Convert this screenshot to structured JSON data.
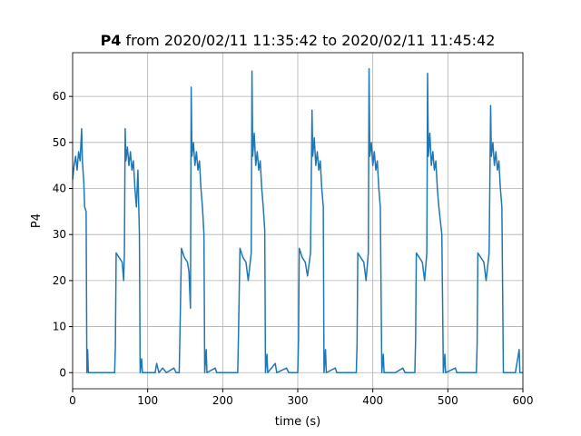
{
  "chart_data": {
    "type": "line",
    "title": {
      "bold": "P4",
      "text": "from 2020/02/11 11:35:42 to 2020/02/11 11:45:42"
    },
    "xlabel": "time (s)",
    "ylabel": "P4",
    "xlim": [
      0,
      600
    ],
    "ylim": [
      -3.5,
      69.5
    ],
    "xticks": [
      0,
      100,
      200,
      300,
      400,
      500,
      600
    ],
    "yticks": [
      0,
      10,
      20,
      30,
      40,
      50,
      60
    ],
    "grid": true,
    "series": [
      {
        "color": "#1f77b4",
        "x": [
          0,
          2,
          4,
          6,
          8,
          10,
          12,
          13,
          15,
          16,
          18,
          19,
          20,
          21,
          56,
          57,
          58,
          62,
          66,
          68,
          69,
          70,
          71,
          73,
          75,
          77,
          79,
          81,
          83,
          85,
          87,
          89,
          90,
          92,
          93,
          110,
          112,
          115,
          120,
          125,
          135,
          138,
          142,
          143,
          145,
          149,
          153,
          155,
          157,
          158,
          159,
          161,
          163,
          165,
          167,
          169,
          171,
          173,
          175,
          176,
          178,
          179,
          190,
          192,
          205,
          220,
          221,
          223,
          227,
          231,
          234,
          238,
          239,
          240,
          242,
          244,
          246,
          248,
          250,
          252,
          254,
          256,
          257,
          259,
          260,
          270,
          272,
          285,
          288,
          300,
          301,
          302,
          306,
          310,
          313,
          317,
          319,
          320,
          322,
          324,
          326,
          328,
          330,
          332,
          334,
          335,
          337,
          338,
          350,
          352,
          365,
          378,
          379,
          380,
          384,
          388,
          391,
          394,
          395,
          396,
          398,
          400,
          402,
          404,
          406,
          408,
          410,
          412,
          414,
          415,
          430,
          440,
          443,
          456,
          457,
          458,
          462,
          466,
          469,
          472,
          473,
          474,
          476,
          478,
          480,
          482,
          484,
          486,
          488,
          492,
          494,
          496,
          497,
          510,
          512,
          530,
          538,
          539,
          540,
          544,
          548,
          551,
          555,
          557,
          558,
          560,
          562,
          564,
          566,
          568,
          570,
          572,
          574,
          590,
          595,
          596,
          600
        ],
        "values": [
          42,
          45,
          47,
          44,
          48,
          46,
          53,
          46,
          41,
          36,
          35,
          0,
          5,
          0,
          0,
          6,
          26,
          25,
          24,
          20,
          26,
          53,
          46,
          49,
          45,
          48,
          44,
          46,
          40,
          36,
          44,
          30,
          0,
          3,
          0,
          0,
          2,
          0,
          1,
          0,
          1,
          0,
          0,
          8,
          27,
          25,
          24,
          22,
          14,
          62,
          47,
          50,
          45,
          48,
          44,
          46,
          40,
          36,
          30,
          0,
          5,
          0,
          1,
          0,
          0,
          0,
          8,
          27,
          25,
          24,
          20,
          26,
          65.5,
          47,
          52,
          45,
          48,
          44,
          46,
          40,
          36,
          31,
          0,
          4,
          0,
          2,
          0,
          1,
          0,
          0,
          7,
          27,
          25,
          24,
          21,
          26,
          57,
          47,
          51,
          45,
          48,
          44,
          46,
          40,
          36,
          0,
          5,
          0,
          1,
          0,
          0,
          0,
          6,
          26,
          25,
          24,
          20,
          26,
          66,
          47,
          50,
          45,
          48,
          44,
          46,
          40,
          36,
          0,
          4,
          0,
          0,
          1,
          0,
          0,
          7,
          26,
          25,
          24,
          20,
          26,
          65,
          47,
          52,
          45,
          48,
          44,
          46,
          40,
          36,
          30,
          0,
          4,
          0,
          1,
          0,
          0,
          0,
          6,
          26,
          25,
          24,
          20,
          26,
          58,
          47,
          50,
          45,
          48,
          44,
          46,
          40,
          36,
          0,
          0,
          5,
          0,
          0
        ]
      }
    ]
  }
}
